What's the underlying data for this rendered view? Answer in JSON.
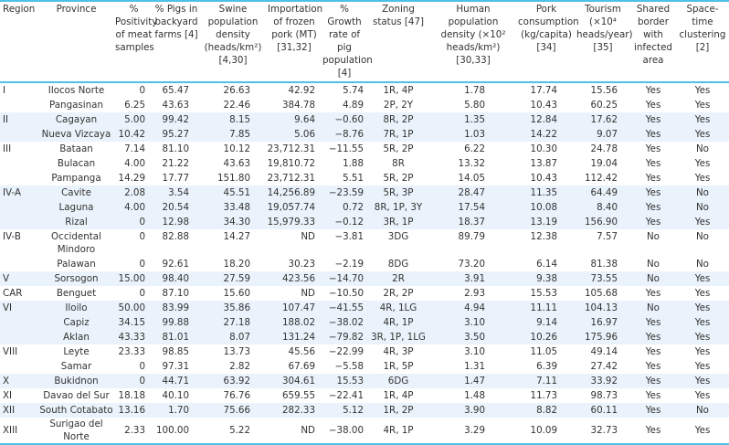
{
  "table": {
    "headers": [
      "Region",
      "Province",
      "% Positivity of meat samples",
      "% Pigs in backyard farms [4]",
      "Swine population density (heads/km²) [4,30]",
      "Importation of frozen pork (MT) [31,32]",
      "% Growth rate of pig population [4]",
      "Zoning status [47]",
      "Human population density (×10² heads/km²) [30,33]",
      "Pork consumption (kg/capita) [34]",
      "Tourism (×10⁴ heads/year) [35]",
      "Shared border with infected area",
      "Space-time clustering [2]"
    ],
    "rows": [
      [
        "I",
        "Ilocos Norte",
        "0",
        "65.47",
        "26.63",
        "42.92",
        "5.74",
        "1R, 4P",
        "1.78",
        "17.74",
        "15.56",
        "Yes",
        "Yes"
      ],
      [
        "",
        "Pangasinan",
        "6.25",
        "43.63",
        "22.46",
        "384.78",
        "4.89",
        "2P, 2Y",
        "5.80",
        "10.43",
        "60.25",
        "Yes",
        "Yes"
      ],
      [
        "II",
        "Cagayan",
        "5.00",
        "99.42",
        "8.15",
        "9.64",
        "−0.60",
        "8R, 2P",
        "1.35",
        "12.84",
        "17.62",
        "Yes",
        "Yes"
      ],
      [
        "",
        "Nueva Vizcaya",
        "10.42",
        "95.27",
        "7.85",
        "5.06",
        "−8.76",
        "7R, 1P",
        "1.03",
        "14.22",
        "9.07",
        "Yes",
        "Yes"
      ],
      [
        "III",
        "Bataan",
        "7.14",
        "81.10",
        "10.12",
        "23,712.31",
        "−11.55",
        "5R, 2P",
        "6.22",
        "10.30",
        "24.78",
        "Yes",
        "No"
      ],
      [
        "",
        "Bulacan",
        "4.00",
        "21.22",
        "43.63",
        "19,810.72",
        "1.88",
        "8R",
        "13.32",
        "13.87",
        "19.04",
        "Yes",
        "Yes"
      ],
      [
        "",
        "Pampanga",
        "14.29",
        "17.77",
        "151.80",
        "23,712.31",
        "5.51",
        "5R, 2P",
        "14.05",
        "10.43",
        "112.42",
        "Yes",
        "Yes"
      ],
      [
        "IV-A",
        "Cavite",
        "2.08",
        "3.54",
        "45.51",
        "14,256.89",
        "−23.59",
        "5R, 3P",
        "28.47",
        "11.35",
        "64.49",
        "Yes",
        "No"
      ],
      [
        "",
        "Laguna",
        "4.00",
        "20.54",
        "33.48",
        "19,057.74",
        "0.72",
        "8R, 1P, 3Y",
        "17.54",
        "10.08",
        "8.40",
        "Yes",
        "No"
      ],
      [
        "",
        "Rizal",
        "0",
        "12.98",
        "34.30",
        "15,979.33",
        "−0.12",
        "3R, 1P",
        "18.37",
        "13.19",
        "156.90",
        "Yes",
        "Yes"
      ],
      [
        "IV-B",
        "Occidental Mindoro",
        "0",
        "82.88",
        "14.27",
        "ND",
        "−3.81",
        "3DG",
        "89.79",
        "12.38",
        "7.57",
        "No",
        "No"
      ],
      [
        "",
        "Palawan",
        "0",
        "92.61",
        "18.20",
        "30.23",
        "−2.19",
        "8DG",
        "73.20",
        "6.14",
        "81.38",
        "No",
        "No"
      ],
      [
        "V",
        "Sorsogon",
        "15.00",
        "98.40",
        "27.59",
        "423.56",
        "−14.70",
        "2R",
        "3.91",
        "9.38",
        "73.55",
        "No",
        "Yes"
      ],
      [
        "CAR",
        "Benguet",
        "0",
        "87.10",
        "15.60",
        "ND",
        "−10.50",
        "2R, 2P",
        "2.93",
        "15.53",
        "105.68",
        "Yes",
        "Yes"
      ],
      [
        "VI",
        "Iloilo",
        "50.00",
        "83.99",
        "35.86",
        "107.47",
        "−41.55",
        "4R, 1LG",
        "4.94",
        "11.11",
        "104.13",
        "No",
        "Yes"
      ],
      [
        "",
        "Capiz",
        "34.15",
        "99.88",
        "27.18",
        "188.02",
        "−38.02",
        "4R, 1P",
        "3.10",
        "9.14",
        "16.97",
        "Yes",
        "Yes"
      ],
      [
        "",
        "Aklan",
        "43.33",
        "81.01",
        "8.07",
        "131.24",
        "−79.82",
        "3R, 1P, 1LG",
        "3.50",
        "10.26",
        "175.96",
        "Yes",
        "Yes"
      ],
      [
        "VIII",
        "Leyte",
        "23.33",
        "98.85",
        "13.73",
        "45.56",
        "−22.99",
        "4R, 3P",
        "3.10",
        "11.05",
        "49.14",
        "Yes",
        "Yes"
      ],
      [
        "",
        "Samar",
        "0",
        "97.31",
        "2.82",
        "67.69",
        "−5.58",
        "1R, 5P",
        "1.31",
        "6.39",
        "27.42",
        "Yes",
        "Yes"
      ],
      [
        "X",
        "Bukidnon",
        "0",
        "44.71",
        "63.92",
        "304.61",
        "15.53",
        "6DG",
        "1.47",
        "7.11",
        "33.92",
        "Yes",
        "Yes"
      ],
      [
        "XI",
        "Davao del Sur",
        "18.18",
        "40.10",
        "76.76",
        "659.55",
        "−22.41",
        "1R, 4P",
        "1.48",
        "11.73",
        "98.73",
        "Yes",
        "Yes"
      ],
      [
        "XII",
        "South Cotabato",
        "13.16",
        "1.70",
        "75.66",
        "282.33",
        "5.12",
        "1R, 2P",
        "3.90",
        "8.82",
        "60.11",
        "Yes",
        "No"
      ],
      [
        "XIII",
        "Surigao del Norte",
        "2.33",
        "100.00",
        "5.22",
        "ND",
        "−38.00",
        "4R, 1P",
        "3.29",
        "10.09",
        "32.73",
        "Yes",
        "Yes"
      ]
    ],
    "band_color": "#eaf3fb",
    "rule_color": "#4fc0ea"
  }
}
